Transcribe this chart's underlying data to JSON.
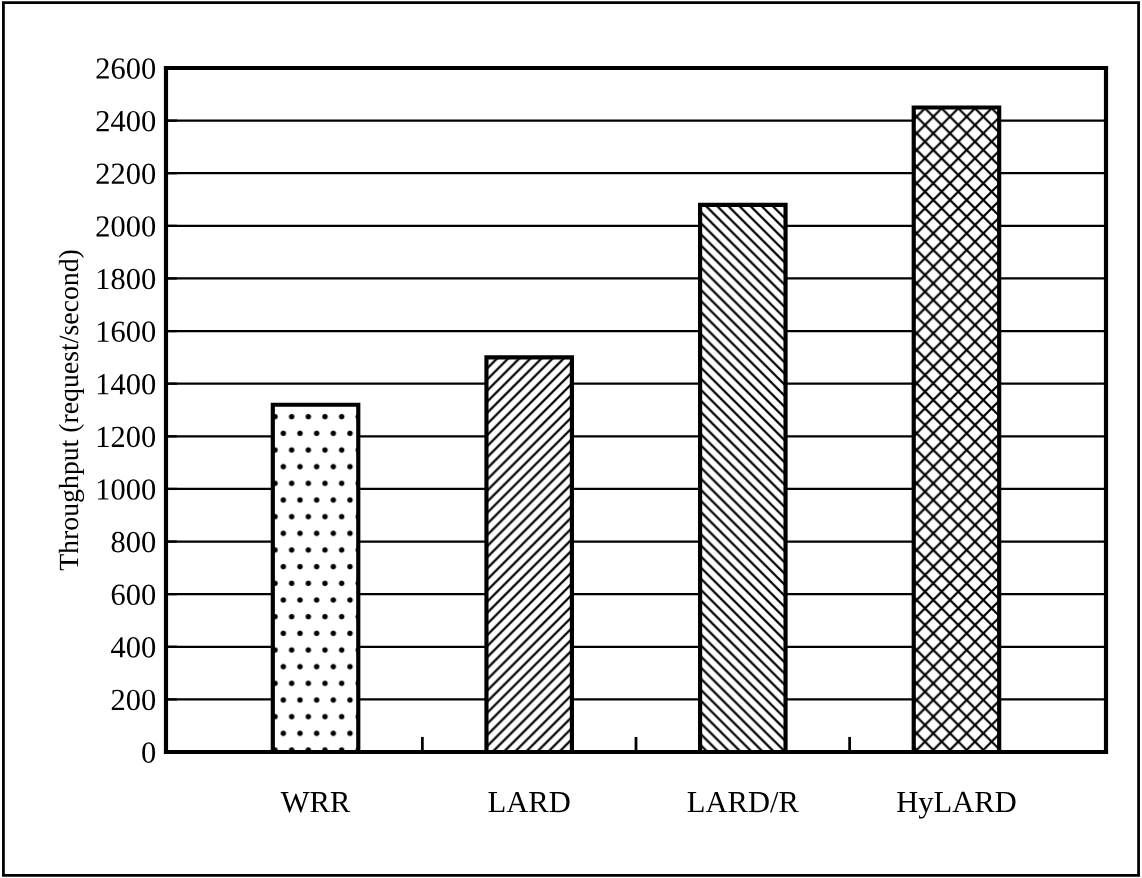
{
  "chart_data": {
    "type": "bar",
    "ylabel": "Throughput (request/second)",
    "categories": [
      "WRR",
      "LARD",
      "LARD/R",
      "HyLARD"
    ],
    "values": [
      1320,
      1500,
      2080,
      2450
    ],
    "color": "#000000",
    "ylim": [
      0,
      2600
    ],
    "yticks": [
      0,
      200,
      400,
      600,
      800,
      1000,
      1200,
      1400,
      1600,
      1800,
      2000,
      2200,
      2400,
      2600
    ],
    "grid": "y"
  }
}
